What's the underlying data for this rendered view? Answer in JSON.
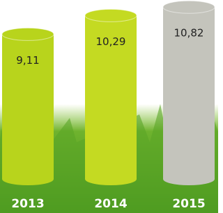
{
  "chart_data": {
    "type": "bar",
    "categories": [
      "2013",
      "2014",
      "2015"
    ],
    "values": [
      9.11,
      10.29,
      10.82
    ],
    "value_labels": [
      "9,11",
      "10,29",
      "10,82"
    ],
    "colors": [
      "#b8d41c",
      "#c4da22",
      "#c4c4bc"
    ]
  }
}
